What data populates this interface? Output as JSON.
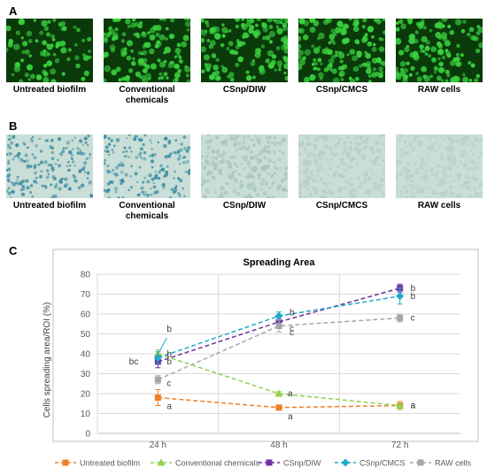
{
  "panels": {
    "a_label": "A",
    "b_label": "B",
    "c_label": "C"
  },
  "row_a": {
    "captions": [
      [
        "Untreated biofilm",
        ""
      ],
      [
        "Conventional",
        "chemicals"
      ],
      [
        "CSnp/DIW",
        ""
      ],
      [
        "CSnp/CMCS",
        ""
      ],
      [
        "RAW cells",
        ""
      ]
    ],
    "tile_bg": "#0a3a0a",
    "cell_color": "#39d13f",
    "densities": [
      0.55,
      0.85,
      0.9,
      0.9,
      0.85
    ]
  },
  "row_b": {
    "captions": [
      [
        "Untreated biofilm",
        ""
      ],
      [
        "Conventional",
        "chemicals"
      ],
      [
        "CSnp/DIW",
        ""
      ],
      [
        "CSnp/CMCS",
        ""
      ],
      [
        "RAW cells",
        ""
      ]
    ],
    "tile_bg": "#c9ded6",
    "dot_colors": [
      "#3f8fa5",
      "#3f8fa5",
      "#a9c7bd",
      "#b6d0c6",
      "#b9d2c8"
    ]
  },
  "chart_data": {
    "type": "line",
    "title": "Spreading Area",
    "ylabel": "Cells spreading area/ROI (%)",
    "xlabel": "",
    "categories": [
      "24 h",
      "48 h",
      "72 h"
    ],
    "ylim": [
      0,
      80
    ],
    "yticks": [
      0,
      10,
      20,
      30,
      40,
      50,
      60,
      70,
      80
    ],
    "grid": true,
    "legend_position": "bottom",
    "series": [
      {
        "name": "Untreated biofilm",
        "color": "#f07f22",
        "marker": "square",
        "values": [
          18,
          13,
          14
        ],
        "errors": [
          4,
          1,
          2
        ],
        "labels": [
          "a",
          "a",
          "a"
        ]
      },
      {
        "name": "Conventional chemicals",
        "color": "#8fd14f",
        "marker": "triangle",
        "values": [
          40,
          20,
          14
        ],
        "errors": [
          2,
          1,
          1
        ],
        "labels": [
          "b",
          "a",
          "a"
        ]
      },
      {
        "name": "CSnp/DIW",
        "color": "#7030a0",
        "marker": "square",
        "values": [
          36,
          56,
          73
        ],
        "errors": [
          3,
          3,
          2
        ],
        "labels": [
          "b",
          "c",
          "b"
        ]
      },
      {
        "name": "CSnp/CMCS",
        "color": "#21a9c9",
        "marker": "diamond",
        "values": [
          38,
          59,
          69
        ],
        "errors": [
          3,
          2,
          4
        ],
        "labels": [
          "b",
          "b",
          "b"
        ]
      },
      {
        "name": "RAW cells",
        "color": "#a6a6a6",
        "marker": "square",
        "values": [
          27,
          54,
          58
        ],
        "errors": [
          2,
          3,
          2
        ],
        "labels": [
          "c",
          "c",
          "c"
        ]
      }
    ],
    "annotations": [
      {
        "text": "bc",
        "x": "24 h",
        "y": 36
      }
    ]
  }
}
